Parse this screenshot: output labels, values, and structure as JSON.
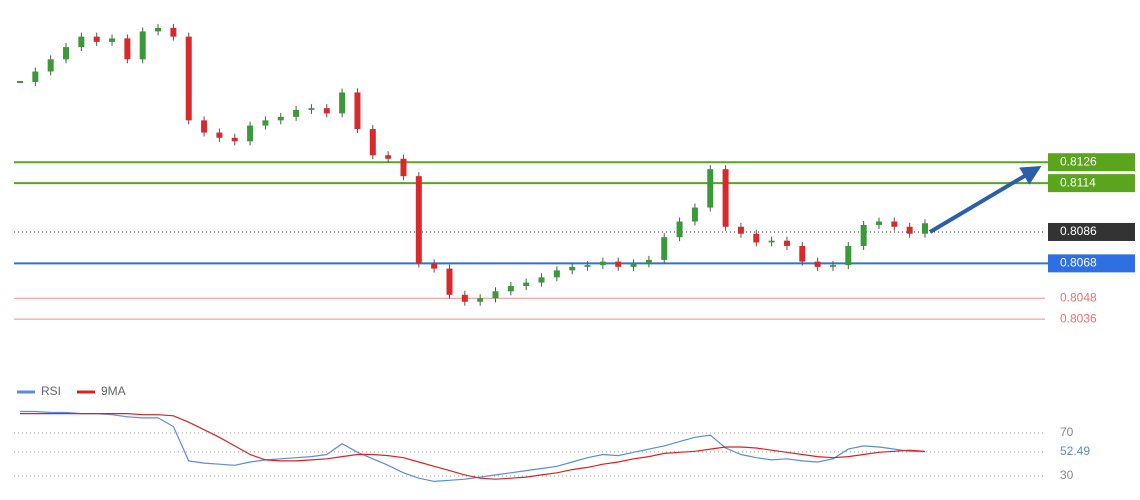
{
  "chart_data": [
    {
      "type": "candlestick",
      "ylim": [
        0.8004,
        0.8219
      ],
      "up_color": "#3a9a3a",
      "down_color": "#d9292b",
      "values": [
        0.8172,
        0.8178,
        0.8185,
        0.8192,
        0.8198,
        0.8195,
        0.8197,
        0.8185,
        0.8201,
        0.8203,
        0.8198,
        0.815,
        0.8143,
        0.814,
        0.8138,
        0.8147,
        0.815,
        0.8152,
        0.8156,
        0.8157,
        0.8154,
        0.8166,
        0.8145,
        0.813,
        0.8128,
        0.8118,
        0.8068,
        0.8065,
        0.805,
        0.8046,
        0.8048,
        0.8052,
        0.8055,
        0.8057,
        0.806,
        0.8064,
        0.8066,
        0.8067,
        0.8069,
        0.8066,
        0.8068,
        0.807,
        0.8083,
        0.8092,
        0.81,
        0.8122,
        0.8089,
        0.8085,
        0.808,
        0.8081,
        0.8078,
        0.8069,
        0.8066,
        0.8067,
        0.8078,
        0.809,
        0.8092,
        0.8089,
        0.8085,
        0.8091
      ],
      "levels": [
        {
          "value": 0.8126,
          "color": "#5aa51d",
          "line": "solid",
          "box": true
        },
        {
          "value": 0.8114,
          "color": "#5aa51d",
          "line": "solid",
          "box": true
        },
        {
          "value": 0.8086,
          "color": "#333333",
          "line": "dotted",
          "box": true
        },
        {
          "value": 0.8068,
          "color": "#2f6fe4",
          "line": "solid",
          "box": true
        },
        {
          "value": 0.8048,
          "color": "#f07070",
          "line": "solid",
          "box": false
        },
        {
          "value": 0.8036,
          "color": "#f07070",
          "line": "solid",
          "box": false
        }
      ]
    },
    {
      "type": "line",
      "ylim": [
        17,
        96
      ],
      "yticks": [
        30,
        70
      ],
      "series": [
        {
          "name": "RSI",
          "color": "#5b8be0",
          "values": [
            90,
            90,
            89,
            89,
            88,
            88,
            87,
            85,
            84,
            84,
            76,
            44,
            42,
            41,
            40,
            43,
            45,
            46,
            47,
            48,
            50,
            60,
            52,
            46,
            40,
            33,
            28,
            25,
            26,
            27,
            29,
            31,
            33,
            35,
            37,
            39,
            43,
            47,
            50,
            49,
            52,
            55,
            58,
            62,
            66,
            68,
            56,
            50,
            47,
            45,
            46,
            44,
            43,
            46,
            55,
            58,
            57,
            55,
            53,
            52.49
          ]
        },
        {
          "name": "9MA",
          "color": "#e02020",
          "values": [
            88,
            88,
            88,
            88,
            88,
            88,
            88,
            88,
            87,
            87,
            86,
            80,
            73,
            66,
            58,
            50,
            45,
            44,
            44,
            45,
            46,
            48,
            50,
            50,
            49,
            47,
            43,
            39,
            35,
            31,
            28,
            27,
            28,
            29,
            31,
            33,
            36,
            38,
            41,
            43,
            46,
            48,
            51,
            52,
            53,
            55,
            57,
            57,
            56,
            54,
            52,
            50,
            48,
            47,
            48,
            50,
            52,
            53,
            54,
            53
          ]
        }
      ]
    }
  ]
}
